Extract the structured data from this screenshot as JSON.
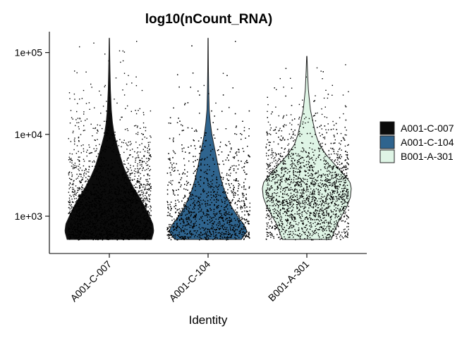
{
  "chart_data": {
    "type": "violin",
    "title": "log10(nCount_RNA)",
    "xlabel": "Identity",
    "ylabel": "",
    "y_scale": "log10",
    "ylim": [
      350,
      180000
    ],
    "y_ticks": [
      {
        "value": 1000,
        "label": "1e+03"
      },
      {
        "value": 10000,
        "label": "1e+04"
      },
      {
        "value": 100000,
        "label": "1e+05"
      }
    ],
    "categories": [
      "A001-C-007",
      "A001-C-104",
      "B001-A-301"
    ],
    "legend": {
      "position": "right",
      "entries": [
        "A001-C-007",
        "A001-C-104",
        "B001-A-301"
      ]
    },
    "series": [
      {
        "name": "A001-C-007",
        "color": "#0b0b0b",
        "min": 520,
        "max": 150000,
        "jitter_points": 2200,
        "density_profile": [
          [
            520,
            0.95
          ],
          [
            650,
            1.0
          ],
          [
            800,
            0.98
          ],
          [
            1000,
            0.9
          ],
          [
            1300,
            0.8
          ],
          [
            1700,
            0.68
          ],
          [
            2200,
            0.55
          ],
          [
            3000,
            0.42
          ],
          [
            4000,
            0.32
          ],
          [
            5500,
            0.24
          ],
          [
            7500,
            0.17
          ],
          [
            10000,
            0.11
          ],
          [
            14000,
            0.07
          ],
          [
            20000,
            0.045
          ],
          [
            35000,
            0.025
          ],
          [
            60000,
            0.015
          ],
          [
            100000,
            0.008
          ],
          [
            150000,
            0.004
          ]
        ]
      },
      {
        "name": "A001-C-104",
        "color": "#2f648e",
        "min": 520,
        "max": 150000,
        "jitter_points": 2200,
        "density_profile": [
          [
            520,
            0.75
          ],
          [
            650,
            0.88
          ],
          [
            800,
            0.8
          ],
          [
            1000,
            0.66
          ],
          [
            1300,
            0.53
          ],
          [
            1700,
            0.43
          ],
          [
            2200,
            0.35
          ],
          [
            3000,
            0.28
          ],
          [
            4000,
            0.23
          ],
          [
            5500,
            0.18
          ],
          [
            7500,
            0.13
          ],
          [
            10000,
            0.085
          ],
          [
            14000,
            0.05
          ],
          [
            20000,
            0.025
          ],
          [
            35000,
            0.014
          ],
          [
            60000,
            0.008
          ],
          [
            100000,
            0.005
          ],
          [
            150000,
            0.003
          ]
        ]
      },
      {
        "name": "B001-A-301",
        "color": "#dff5e6",
        "min": 520,
        "max": 90000,
        "jitter_points": 2600,
        "density_profile": [
          [
            520,
            0.55
          ],
          [
            650,
            0.62
          ],
          [
            800,
            0.68
          ],
          [
            1000,
            0.78
          ],
          [
            1300,
            0.9
          ],
          [
            1700,
            0.98
          ],
          [
            2200,
            1.0
          ],
          [
            2600,
            0.97
          ],
          [
            3000,
            0.88
          ],
          [
            4000,
            0.68
          ],
          [
            5500,
            0.45
          ],
          [
            7500,
            0.28
          ],
          [
            10000,
            0.2
          ],
          [
            14000,
            0.14
          ],
          [
            20000,
            0.08
          ],
          [
            35000,
            0.035
          ],
          [
            60000,
            0.015
          ],
          [
            90000,
            0.004
          ]
        ]
      }
    ]
  }
}
